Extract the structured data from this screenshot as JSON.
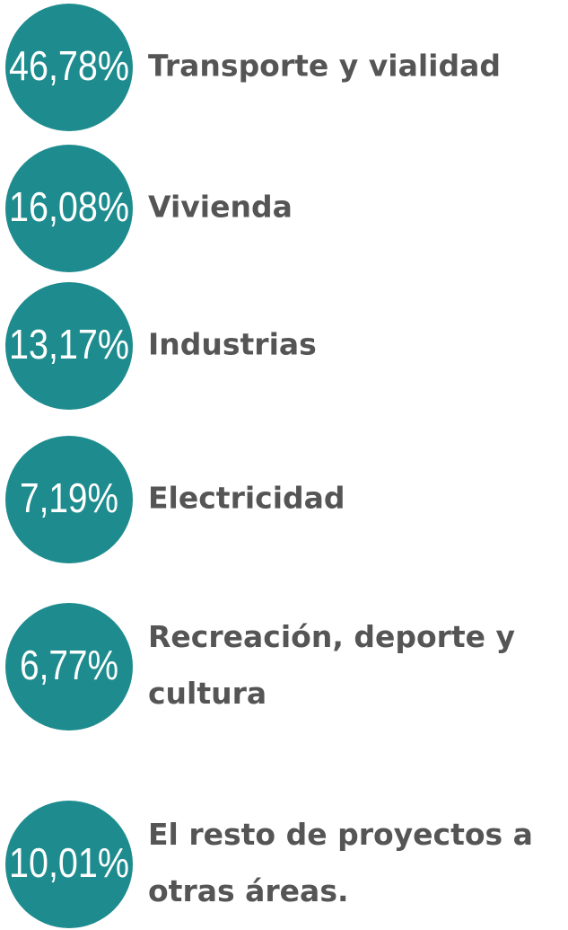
{
  "items": [
    {
      "percent": "46,78%",
      "label": [
        "Transporte y vialidad"
      ]
    },
    {
      "percent": "16,08%",
      "label": [
        "Vivienda"
      ]
    },
    {
      "percent": "13,17%",
      "label": [
        "Industrias"
      ]
    },
    {
      "percent": "7,19%",
      "label": [
        "Electricidad"
      ]
    },
    {
      "percent": "6,77%",
      "label": [
        "Recreación, deporte y",
        "cultura"
      ]
    },
    {
      "percent": "10,01%",
      "label": [
        "El resto de proyectos a",
        "otras áreas."
      ]
    }
  ]
}
